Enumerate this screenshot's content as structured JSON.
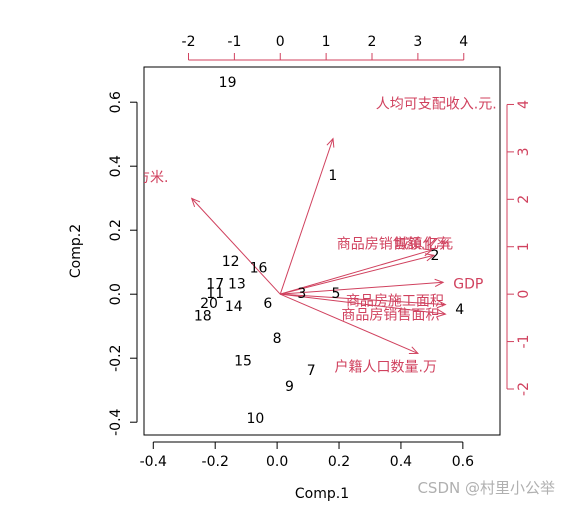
{
  "chart_data": {
    "type": "scatter",
    "subtype": "biplot",
    "xlabel": "Comp.1",
    "ylabel": "Comp.2",
    "xlim": [
      -0.43,
      0.72
    ],
    "ylim": [
      -0.44,
      0.71
    ],
    "x_ticks": [
      "-0.4",
      "-0.2",
      "0.0",
      "0.2",
      "0.4",
      "0.6"
    ],
    "y_ticks": [
      "-0.4",
      "-0.2",
      "0.0",
      "0.2",
      "0.4",
      "0.6"
    ],
    "top_ticks": [
      "-2",
      "-1",
      "0",
      "1",
      "2",
      "3",
      "4"
    ],
    "right_ticks": [
      "-2",
      "-1",
      "0",
      "1",
      "2",
      "3",
      "4"
    ],
    "top_scale_range": [
      -2.97,
      4.79
    ],
    "right_scale_range": [
      -2.97,
      4.79
    ],
    "observations": [
      {
        "label": "1",
        "x": 0.18,
        "y": 0.37
      },
      {
        "label": "2",
        "x": 0.51,
        "y": 0.12
      },
      {
        "label": "3",
        "x": 0.08,
        "y": 0.0
      },
      {
        "label": "4",
        "x": 0.59,
        "y": -0.05
      },
      {
        "label": "5",
        "x": 0.19,
        "y": 0.0
      },
      {
        "label": "6",
        "x": -0.03,
        "y": -0.03
      },
      {
        "label": "7",
        "x": 0.11,
        "y": -0.24
      },
      {
        "label": "8",
        "x": 0.0,
        "y": -0.14
      },
      {
        "label": "9",
        "x": 0.04,
        "y": -0.29
      },
      {
        "label": "10",
        "x": -0.07,
        "y": -0.39
      },
      {
        "label": "11",
        "x": -0.2,
        "y": 0.0
      },
      {
        "label": "12",
        "x": -0.15,
        "y": 0.1
      },
      {
        "label": "13",
        "x": -0.13,
        "y": 0.03
      },
      {
        "label": "14",
        "x": -0.14,
        "y": -0.04
      },
      {
        "label": "15",
        "x": -0.11,
        "y": -0.21
      },
      {
        "label": "16",
        "x": -0.06,
        "y": 0.08
      },
      {
        "label": "17",
        "x": -0.2,
        "y": 0.03
      },
      {
        "label": "18",
        "x": -0.24,
        "y": -0.07
      },
      {
        "label": "19",
        "x": -0.16,
        "y": 0.66
      },
      {
        "label": "20",
        "x": -0.22,
        "y": -0.03
      }
    ],
    "variables": [
      {
        "label": "人均可支配收入.元.",
        "x": 1.15,
        "y": 3.28
      },
      {
        "label": "人均住房面积.平方米.",
        "x": -1.93,
        "y": 2.02
      },
      {
        "label": "商品房销售额.亿元.",
        "x": 3.3,
        "y": 0.93
      },
      {
        "label": "城镇化率",
        "x": 3.35,
        "y": 0.82
      },
      {
        "label": "GDP",
        "x": 3.55,
        "y": 0.25
      },
      {
        "label": "商品房施工面积",
        "x": 3.6,
        "y": -0.22
      },
      {
        "label": "商品房销售面积",
        "x": 3.6,
        "y": -0.42
      },
      {
        "label": "户籍人口数量.万",
        "x": 3.0,
        "y": -1.25
      }
    ],
    "visible_variable_text": [
      {
        "text": "人均可支配收入.元.",
        "x": 3.4,
        "y": 4.0
      },
      {
        "text": "均面积.平方米.",
        "x": -3.45,
        "y": 2.45
      },
      {
        "text": "商品房销售额.亿元",
        "x": 2.5,
        "y": 1.05
      },
      {
        "text": "城镇化率",
        "x": 3.1,
        "y": 1.05
      },
      {
        "text": "GDP",
        "x": 4.1,
        "y": 0.2
      },
      {
        "text": "商品房施工面积",
        "x": 2.5,
        "y": -0.15
      },
      {
        "text": "商品房销售面积",
        "x": 2.4,
        "y": -0.45
      },
      {
        "text": "户籍人口数量.万",
        "x": 2.3,
        "y": -1.55
      }
    ]
  },
  "watermark": "CSDN @村里小公举"
}
